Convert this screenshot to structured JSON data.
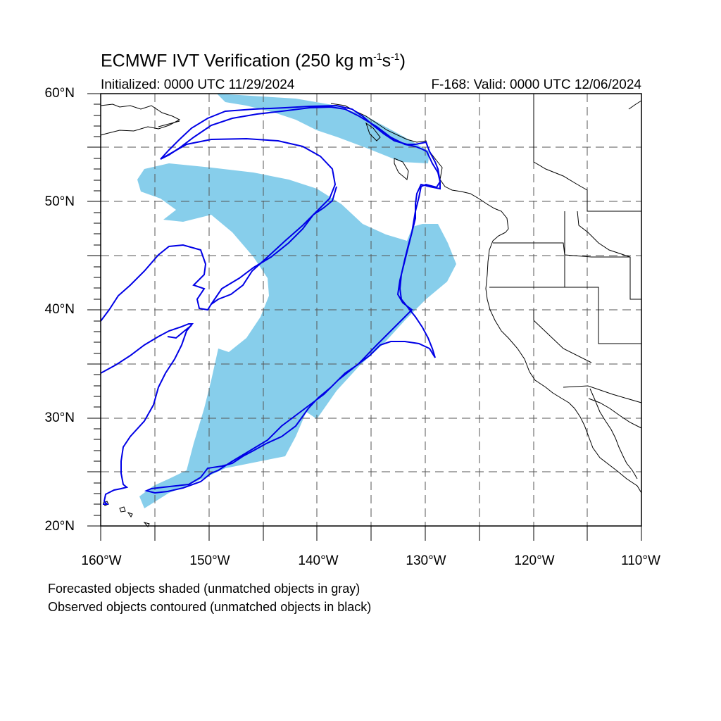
{
  "title": {
    "main": "ECMWF IVT Verification (250 kg m",
    "sup1": "-1",
    "mid": "s",
    "sup2": "-1",
    "end": ")"
  },
  "initialized": "Initialized: 0000 UTC 11/29/2024",
  "valid": "F-168: Valid: 0000 UTC 12/06/2024",
  "lat_labels": [
    "60°N",
    "50°N",
    "40°N",
    "30°N",
    "20°N"
  ],
  "lon_labels": [
    "160°W",
    "150°W",
    "140°W",
    "130°W",
    "120°W",
    "110°W"
  ],
  "notes": [
    "Forecasted objects shaded (unmatched objects in gray)",
    "Observed objects contoured (unmatched objects in black)"
  ],
  "colors": {
    "forecast_fill": "#87ceeb",
    "observed_contour": "#0000e6",
    "coastline": "#000000",
    "grid": "#555555"
  },
  "map_extent": {
    "lon_min": -160,
    "lon_max": -110,
    "lat_min": 20,
    "lat_max": 60
  }
}
